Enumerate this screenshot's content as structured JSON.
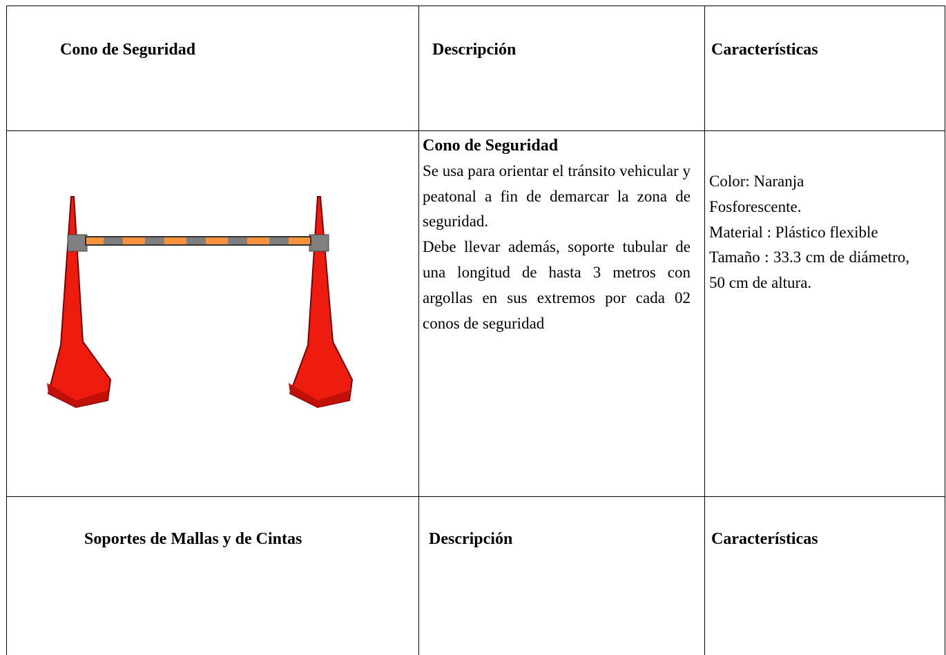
{
  "table": {
    "rows": [
      [
        "Cono de Seguridad",
        "Descripción",
        "Características"
      ],
      {
        "description": {
          "title": "Cono de Seguridad",
          "paragraphs": [
            "Se usa para orientar el tránsito vehicular  y peatonal a fin de demarcar la zona de seguridad.",
            "Debe llevar además, soporte tubular de una longitud de hasta 3 metros con argollas en sus extremos por cada 02 conos de seguridad"
          ]
        },
        "characteristics": [
          "Color: Naranja",
          "Fosforescente.",
          "Material : Plástico flexible",
          "Tamaño : 33.3 cm de diámetro, 50 cm de altura."
        ]
      },
      [
        "Soportes de Mallas y de Cintas",
        "Descripción",
        "Características"
      ]
    ]
  }
}
